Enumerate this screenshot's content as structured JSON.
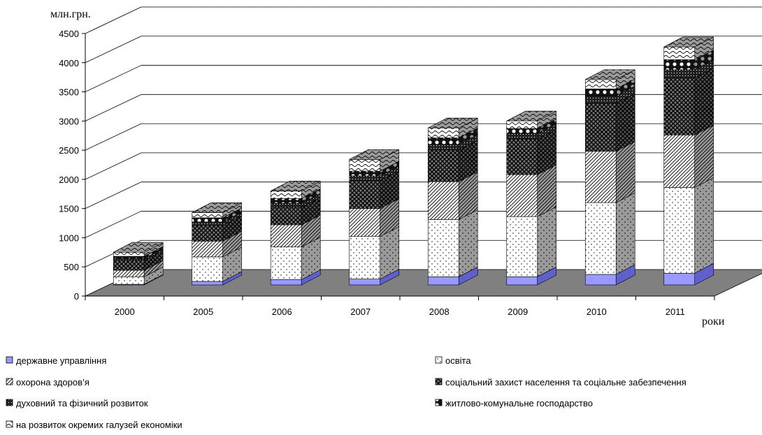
{
  "chart_data": {
    "type": "bar",
    "stacked": true,
    "three_d": true,
    "ylabel": "млн.грн.",
    "xlabel": "роки",
    "ylim": [
      0,
      4500
    ],
    "yticks": [
      0,
      500,
      1000,
      1500,
      2000,
      2500,
      3000,
      3500,
      4000,
      4500
    ],
    "grid": true,
    "legend_position": "bottom",
    "categories": [
      "2000",
      "2005",
      "2006",
      "2007",
      "2008",
      "2009",
      "2010",
      "2011"
    ],
    "series": [
      {
        "name": "державне управління",
        "pattern": "solid",
        "color": "#9999ff",
        "values": [
          10,
          60,
          90,
          100,
          140,
          140,
          180,
          200
        ]
      },
      {
        "name": "освіта",
        "pattern": "dots",
        "color": "#ffffff",
        "values": [
          130,
          420,
          560,
          730,
          980,
          1030,
          1230,
          1470
        ]
      },
      {
        "name": "охорона здоров’я",
        "pattern": "diagonal",
        "color": "#ffffff",
        "values": [
          110,
          270,
          380,
          480,
          650,
          720,
          880,
          900
        ]
      },
      {
        "name": "соціальний захист населення та соціальне забезпечення",
        "pattern": "crosshatch",
        "color": "#888888",
        "values": [
          170,
          270,
          300,
          480,
          540,
          610,
          820,
          980
        ]
      },
      {
        "name": "духовний та фізичний розвиток",
        "pattern": "dark",
        "color": "#333333",
        "values": [
          30,
          60,
          70,
          80,
          100,
          100,
          130,
          140
        ]
      },
      {
        "name": "житлово-комунальне господарство",
        "pattern": "circles",
        "color": "#222222",
        "values": [
          40,
          70,
          80,
          80,
          110,
          80,
          120,
          170
        ]
      },
      {
        "name": "на розвиток окремих галузей економіки",
        "pattern": "waves",
        "color": "#ffffff",
        "values": [
          70,
          90,
          130,
          200,
          170,
          130,
          160,
          220
        ]
      }
    ]
  }
}
